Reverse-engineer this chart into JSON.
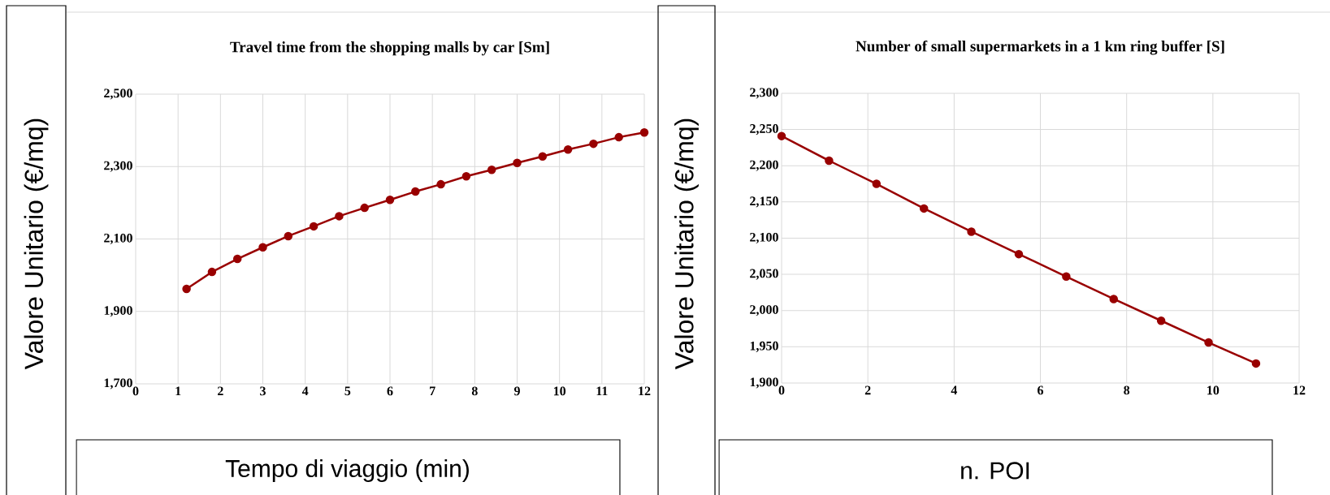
{
  "chart_data": [
    {
      "type": "line",
      "title": "Travel time from the shopping malls by car [Sm]",
      "xlabel": "Tempo di viaggio (min)",
      "ylabel": "Valore Unitario (€/mq)",
      "x": [
        1.2,
        1.8,
        2.4,
        3.0,
        3.6,
        4.2,
        4.8,
        5.4,
        6.0,
        6.6,
        7.2,
        7.8,
        8.4,
        9.0,
        9.6,
        10.2,
        10.8,
        11.4,
        12
      ],
      "values": [
        1962,
        2009,
        2045,
        2077,
        2108,
        2135,
        2163,
        2186,
        2208,
        2231,
        2251,
        2273,
        2291,
        2310,
        2328,
        2347,
        2363,
        2381,
        2394
      ],
      "color": "#990000",
      "marker": "circle",
      "grid": true,
      "xlim": [
        0,
        12
      ],
      "ylim": [
        1700,
        2500
      ],
      "xticks": [
        0,
        1,
        2,
        3,
        4,
        5,
        6,
        7,
        8,
        9,
        10,
        11,
        12
      ],
      "yticks": [
        {
          "value": 1700,
          "label": "1,700"
        },
        {
          "value": 1900,
          "label": "1,900"
        },
        {
          "value": 2100,
          "label": "2,100"
        },
        {
          "value": 2300,
          "label": "2,300"
        },
        {
          "value": 2500,
          "label": "2,500"
        }
      ]
    },
    {
      "type": "line",
      "title": "Number of small supermarkets in a 1 km ring buffer [S]",
      "xlabel": "n. POI",
      "ylabel": "Valore Unitario (€/mq)",
      "x": [
        0,
        1.1,
        2.2,
        3.3,
        4.4,
        5.5,
        6.6,
        7.7,
        8.8,
        9.9,
        11.0
      ],
      "values": [
        2241,
        2207,
        2175,
        2141,
        2109,
        2078,
        2047,
        2016,
        1986,
        1956,
        1927
      ],
      "color": "#990000",
      "marker": "circle",
      "grid": true,
      "xlim": [
        0,
        12
      ],
      "ylim": [
        1900,
        2300
      ],
      "xticks": [
        0,
        2,
        4,
        6,
        8,
        10,
        12
      ],
      "yticks": [
        {
          "value": 1900,
          "label": "1,900"
        },
        {
          "value": 1950,
          "label": "1,950"
        },
        {
          "value": 2000,
          "label": "2,000"
        },
        {
          "value": 2050,
          "label": "2,050"
        },
        {
          "value": 2100,
          "label": "2,100"
        },
        {
          "value": 2150,
          "label": "2,150"
        },
        {
          "value": 2200,
          "label": "2,200"
        },
        {
          "value": 2250,
          "label": "2,250"
        },
        {
          "value": 2300,
          "label": "2,300"
        }
      ]
    }
  ]
}
